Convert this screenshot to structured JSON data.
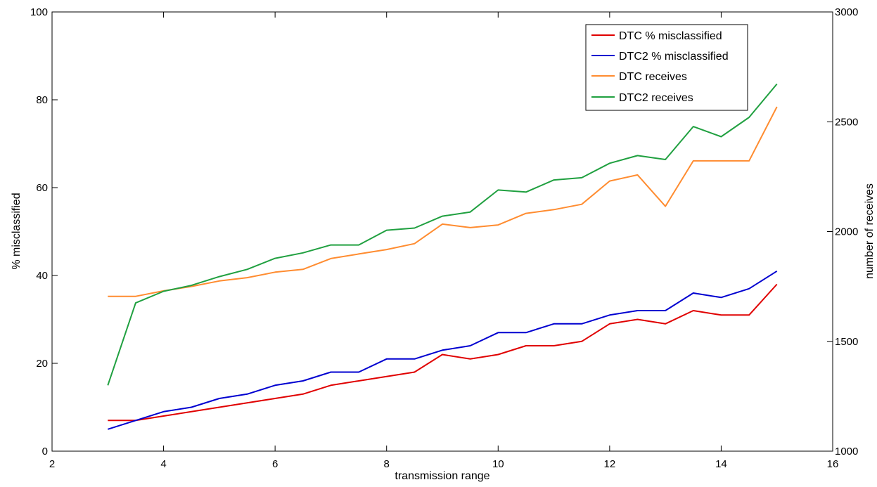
{
  "chart_data": {
    "type": "line",
    "xlabel": "transmission range",
    "ylabel_left": "% misclassified",
    "ylabel_right": "number of receives",
    "xlim": [
      2,
      16
    ],
    "ylim_left": [
      0,
      100
    ],
    "ylim_right": [
      1000,
      3000
    ],
    "x_ticks": [
      2,
      4,
      6,
      8,
      10,
      12,
      14,
      16
    ],
    "y_ticks_left": [
      0,
      20,
      40,
      60,
      80,
      100
    ],
    "y_ticks_right": [
      1000,
      1500,
      2000,
      2500,
      3000
    ],
    "grid": false,
    "legend_position": "top-right",
    "x": [
      3,
      3.5,
      4,
      4.5,
      5,
      5.5,
      6,
      6.5,
      7,
      7.5,
      8,
      8.5,
      9,
      9.5,
      10,
      10.5,
      11,
      11.5,
      12,
      12.5,
      13,
      13.5,
      14,
      14.5,
      15
    ],
    "series": [
      {
        "name": "DTC % misclassified",
        "axis": "left",
        "color": "#e00000",
        "values": [
          7,
          7,
          8,
          9,
          10,
          11,
          12,
          13,
          15,
          16,
          17,
          18,
          22,
          21,
          22,
          24,
          24,
          25,
          29,
          30,
          29,
          32,
          31,
          31,
          38
        ]
      },
      {
        "name": "DTC2 % misclassified",
        "axis": "left",
        "color": "#0000d0",
        "values": [
          5,
          7,
          9,
          10,
          12,
          13,
          15,
          16,
          18,
          18,
          21,
          21,
          23,
          24,
          27,
          27,
          29,
          29,
          31,
          32,
          32,
          36,
          35,
          37,
          41
        ]
      },
      {
        "name": "DTC receives",
        "axis": "right",
        "color": "#ff8c30",
        "values": [
          1705,
          1705,
          1730,
          1750,
          1775,
          1790,
          1815,
          1828,
          1877,
          1898,
          1918,
          1945,
          2034,
          2018,
          2030,
          2083,
          2100,
          2124,
          2230,
          2258,
          2115,
          2322,
          2322,
          2322,
          2568
        ]
      },
      {
        "name": "DTC2 receives",
        "axis": "right",
        "color": "#20a040",
        "values": [
          1300,
          1675,
          1728,
          1755,
          1795,
          1828,
          1878,
          1903,
          1939,
          1939,
          2006,
          2016,
          2070,
          2089,
          2189,
          2180,
          2235,
          2245,
          2311,
          2346,
          2328,
          2478,
          2432,
          2520,
          2672
        ]
      }
    ]
  }
}
